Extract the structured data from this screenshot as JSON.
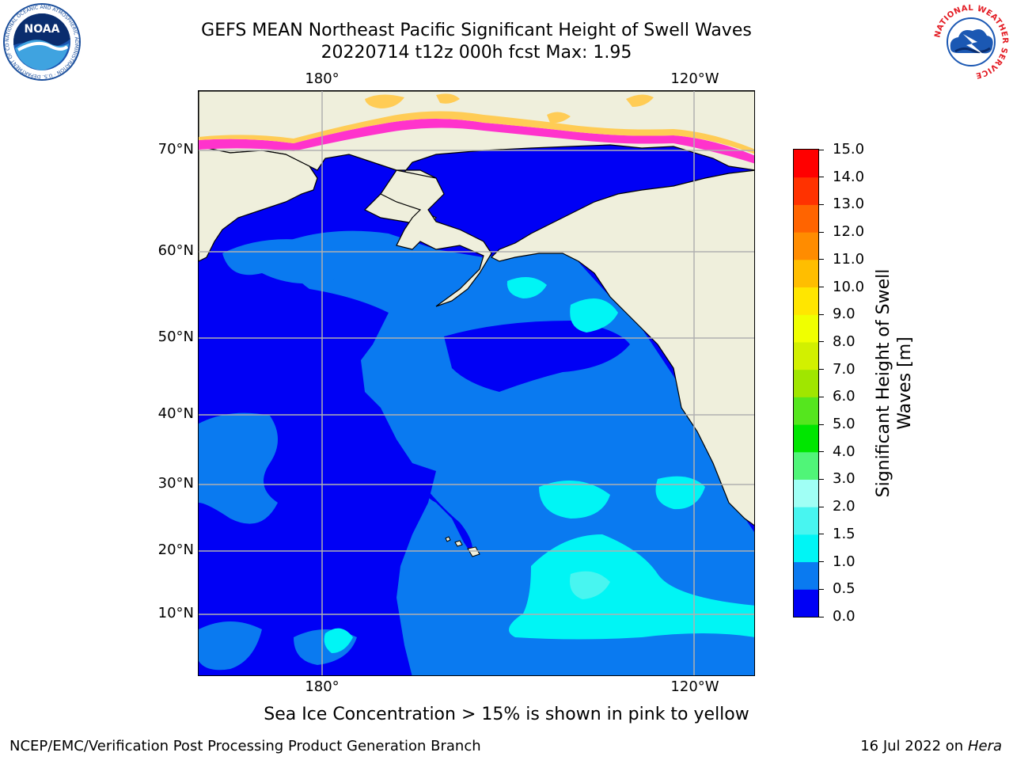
{
  "header": {
    "title_line1": "GEFS MEAN Northeast Pacific Significant Height of Swell Waves",
    "title_line2": "20220714 t12z 000h fcst   Max: 1.95"
  },
  "logos": {
    "left": {
      "name": "NOAA",
      "text": "NOAA",
      "ring_text": "NATIONAL OCEANIC AND ATMOSPHERIC ADMINISTRATION · U.S. DEPARTMENT OF COMMERCE"
    },
    "right": {
      "name": "National Weather Service",
      "ring_text": "NATIONAL WEATHER SERVICE"
    }
  },
  "map": {
    "lon_labels": [
      "180°",
      "120°W"
    ],
    "lat_labels": [
      "70°N",
      "60°N",
      "50°N",
      "40°N",
      "30°N",
      "20°N",
      "10°N"
    ],
    "colors": {
      "land": "#efefdc",
      "sea_0_0.5": "#0000f5",
      "sea_0.5_1.0": "#0a7af0",
      "sea_1.0_1.5": "#00f5f5",
      "sea_1.5_2.0": "#48f5f0",
      "ice_low": "#ff33cc",
      "ice_high": "#ffcc55"
    }
  },
  "colorbar": {
    "title_line1": "Significant Height of Swell",
    "title_line2": "Waves [m]",
    "ticks": [
      "0.0",
      "0.5",
      "1.0",
      "1.5",
      "2.0",
      "3.0",
      "4.0",
      "5.0",
      "6.0",
      "7.0",
      "8.0",
      "9.0",
      "10.0",
      "11.0",
      "12.0",
      "13.0",
      "14.0",
      "15.0"
    ],
    "colors": [
      "#0000f5",
      "#0a7af0",
      "#00f5f5",
      "#48f5f0",
      "#a0fff5",
      "#50f578",
      "#00e600",
      "#55e61e",
      "#a0e600",
      "#d2f000",
      "#f0ff00",
      "#ffe600",
      "#ffbe00",
      "#ff8c00",
      "#ff6400",
      "#ff3200",
      "#ff0000"
    ]
  },
  "footnote": "Sea Ice Concentration > 15% is shown in pink to yellow",
  "footer": {
    "left": "NCEP/EMC/Verification Post Processing Product Generation Branch",
    "right_date": "16 Jul 2022 on ",
    "right_host": "Hera"
  }
}
